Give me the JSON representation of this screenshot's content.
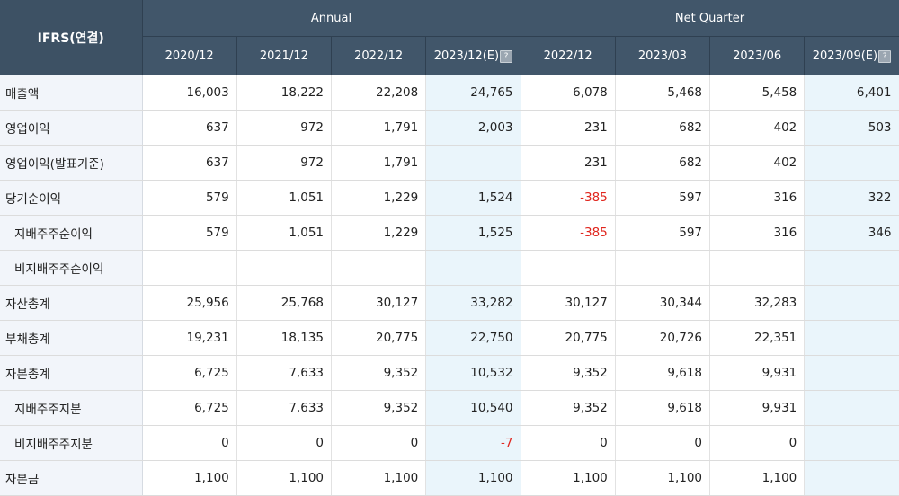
{
  "header": {
    "corner": "IFRS(연결)",
    "group_annual": "Annual",
    "group_quarter": "Net Quarter",
    "periods": [
      "2020/12",
      "2021/12",
      "2022/12",
      "2023/12(E)",
      "2022/12",
      "2023/03",
      "2023/06",
      "2023/09(E)"
    ],
    "estimate_icon_glyph": "?"
  },
  "rows": [
    {
      "label": "매출액",
      "values": [
        "16,003",
        "18,222",
        "22,208",
        "24,765",
        "6,078",
        "5,468",
        "5,458",
        "6,401"
      ]
    },
    {
      "label": "영업이익",
      "values": [
        "637",
        "972",
        "1,791",
        "2,003",
        "231",
        "682",
        "402",
        "503"
      ]
    },
    {
      "label": "영업이익(발표기준)",
      "values": [
        "637",
        "972",
        "1,791",
        "",
        "231",
        "682",
        "402",
        ""
      ]
    },
    {
      "label": "당기순이익",
      "values": [
        "579",
        "1,051",
        "1,229",
        "1,524",
        "-385",
        "597",
        "316",
        "322"
      ]
    },
    {
      "label": "지배주주순이익",
      "values": [
        "579",
        "1,051",
        "1,229",
        "1,525",
        "-385",
        "597",
        "316",
        "346"
      ]
    },
    {
      "label": "비지배주주순이익",
      "values": [
        "",
        "",
        "",
        "",
        "",
        "",
        "",
        ""
      ]
    },
    {
      "label": "자산총계",
      "values": [
        "25,956",
        "25,768",
        "30,127",
        "33,282",
        "30,127",
        "30,344",
        "32,283",
        ""
      ]
    },
    {
      "label": "부채총계",
      "values": [
        "19,231",
        "18,135",
        "20,775",
        "22,750",
        "20,775",
        "20,726",
        "22,351",
        ""
      ]
    },
    {
      "label": "자본총계",
      "values": [
        "6,725",
        "7,633",
        "9,352",
        "10,532",
        "9,352",
        "9,618",
        "9,931",
        ""
      ]
    },
    {
      "label": "지배주주지분",
      "values": [
        "6,725",
        "7,633",
        "9,352",
        "10,540",
        "9,352",
        "9,618",
        "9,931",
        ""
      ]
    },
    {
      "label": "비지배주주지분",
      "values": [
        "0",
        "0",
        "0",
        "-7",
        "0",
        "0",
        "0",
        ""
      ]
    },
    {
      "label": "자본금",
      "values": [
        "1,100",
        "1,100",
        "1,100",
        "1,100",
        "1,100",
        "1,100",
        "1,100",
        ""
      ]
    }
  ],
  "colors": {
    "header_bg": "#41566a",
    "label_bg": "#f2f5fa",
    "estimate_bg": "#eaf5fb",
    "negative": "#e0261e"
  }
}
